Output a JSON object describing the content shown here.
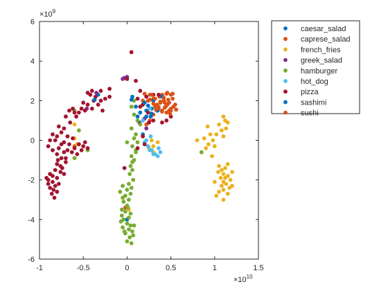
{
  "chart_data": {
    "type": "scatter",
    "title": "",
    "xlabel": "",
    "ylabel": "",
    "xlim": [
      -1,
      1.5
    ],
    "ylim": [
      -6,
      6
    ],
    "x_exponent": "×10",
    "x_exponent_power": "10",
    "y_exponent": "×10",
    "y_exponent_power": "9",
    "x_ticks": [
      -1,
      -0.5,
      0,
      0.5,
      1,
      1.5
    ],
    "x_tick_labels": [
      "-1",
      "-0.5",
      "0",
      "0.5",
      "1",
      "1.5"
    ],
    "y_ticks": [
      -6,
      -4,
      -2,
      0,
      2,
      4,
      6
    ],
    "y_tick_labels": [
      "-6",
      "-4",
      "-2",
      "0",
      "2",
      "4",
      "6"
    ],
    "grid": false,
    "legend_position": "outside-top-right",
    "series": [
      {
        "name": "caesar_salad",
        "color": "#0072BD",
        "points": [
          [
            0.06,
            2.2
          ],
          [
            0.12,
            1.2
          ],
          [
            0.22,
            1.5
          ],
          [
            0.28,
            1.6
          ],
          [
            0.35,
            1.5
          ],
          [
            -0.33,
            2.3
          ],
          [
            0.0,
            -4.0
          ],
          [
            0.18,
            0.3
          ]
        ]
      },
      {
        "name": "caprese_salad",
        "color": "#D95319",
        "points": [
          [
            0.2,
            2.35
          ],
          [
            0.26,
            2.3
          ],
          [
            0.3,
            2.1
          ],
          [
            0.34,
            1.8
          ],
          [
            0.36,
            1.6
          ],
          [
            0.4,
            1.5
          ],
          [
            0.42,
            2.0
          ],
          [
            0.44,
            1.7
          ],
          [
            0.46,
            2.4
          ],
          [
            0.48,
            1.9
          ],
          [
            0.5,
            1.6
          ],
          [
            0.52,
            2.1
          ],
          [
            0.38,
            1.9
          ],
          [
            0.4,
            2.3
          ],
          [
            0.45,
            1.4
          ],
          [
            0.3,
            1.3
          ],
          [
            0.22,
            0.8
          ],
          [
            0.24,
            2.0
          ],
          [
            0.32,
            1.7
          ],
          [
            0.48,
            1.5
          ],
          [
            0.55,
            1.8
          ],
          [
            0.43,
            1.9
          ],
          [
            0.37,
            2.2
          ],
          [
            0.5,
            2.3
          ],
          [
            0.26,
            1.0
          ],
          [
            -0.6,
            -0.3
          ],
          [
            -0.02,
            -3.4
          ],
          [
            0.18,
            2.0
          ]
        ]
      },
      {
        "name": "french_fries",
        "color": "#EDB120",
        "points": [
          [
            1.1,
            1.2
          ],
          [
            1.12,
            1.0
          ],
          [
            1.05,
            0.8
          ],
          [
            1.08,
            0.5
          ],
          [
            1.1,
            0.2
          ],
          [
            1.15,
            0.9
          ],
          [
            1.13,
            0.6
          ],
          [
            1.02,
            0.3
          ],
          [
            0.95,
            0.3
          ],
          [
            0.88,
            0.1
          ],
          [
            0.9,
            -0.4
          ],
          [
            0.93,
            -0.2
          ],
          [
            0.85,
            -0.6
          ],
          [
            0.98,
            0.0
          ],
          [
            1.0,
            -0.3
          ],
          [
            1.05,
            -1.3
          ],
          [
            1.08,
            -1.5
          ],
          [
            1.1,
            -1.7
          ],
          [
            1.12,
            -1.9
          ],
          [
            1.15,
            -1.8
          ],
          [
            1.18,
            -2.0
          ],
          [
            1.2,
            -1.6
          ],
          [
            1.1,
            -2.1
          ],
          [
            1.08,
            -2.3
          ],
          [
            1.13,
            -2.2
          ],
          [
            1.17,
            -2.4
          ],
          [
            1.05,
            -2.6
          ],
          [
            1.1,
            -2.5
          ],
          [
            1.15,
            -2.7
          ],
          [
            1.2,
            -2.3
          ],
          [
            1.02,
            -2.8
          ],
          [
            1.1,
            -3.0
          ],
          [
            1.0,
            -2.1
          ],
          [
            1.07,
            -1.9
          ],
          [
            1.04,
            -1.6
          ],
          [
            1.12,
            -1.4
          ],
          [
            1.15,
            -1.2
          ],
          [
            0.8,
            0.0
          ],
          [
            0.92,
            0.7
          ],
          [
            0.97,
            -0.8
          ],
          [
            0.3,
            -0.3
          ],
          [
            0.28,
            0.0
          ],
          [
            0.35,
            -0.1
          ],
          [
            0.3,
            -0.6
          ],
          [
            0.25,
            -0.4
          ],
          [
            -0.57,
            -0.2
          ],
          [
            -0.6,
            0.1
          ],
          [
            -0.6,
            0.8
          ],
          [
            0.02,
            -3.5
          ]
        ]
      },
      {
        "name": "greek_salad",
        "color": "#7E2F8E",
        "points": [
          [
            -0.05,
            3.1
          ],
          [
            -0.03,
            3.15
          ],
          [
            0.0,
            3.2
          ],
          [
            0.2,
            1.1
          ],
          [
            0.14,
            0.9
          ],
          [
            -0.35,
            2.4
          ],
          [
            -0.46,
            1.6
          ],
          [
            0.22,
            0.6
          ]
        ]
      },
      {
        "name": "hamburger",
        "color": "#77AC30",
        "points": [
          [
            0.05,
            1.7
          ],
          [
            0.08,
            1.3
          ],
          [
            0.12,
            1.0
          ],
          [
            0.05,
            0.6
          ],
          [
            0.1,
            0.3
          ],
          [
            0.08,
            0.1
          ],
          [
            0.12,
            -0.1
          ],
          [
            0.06,
            -0.3
          ],
          [
            0.1,
            -0.5
          ],
          [
            0.05,
            -0.8
          ],
          [
            0.08,
            -1.0
          ],
          [
            0.04,
            -1.3
          ],
          [
            0.06,
            -1.5
          ],
          [
            0.03,
            -1.7
          ],
          [
            0.07,
            -2.0
          ],
          [
            0.02,
            -2.2
          ],
          [
            0.05,
            -2.4
          ],
          [
            0.0,
            -2.5
          ],
          [
            0.04,
            -2.7
          ],
          [
            -0.02,
            -2.8
          ],
          [
            0.02,
            -3.0
          ],
          [
            -0.04,
            -3.1
          ],
          [
            0.0,
            -3.3
          ],
          [
            -0.06,
            -3.5
          ],
          [
            -0.02,
            -3.6
          ],
          [
            -0.06,
            -3.8
          ],
          [
            0.02,
            -3.9
          ],
          [
            -0.04,
            -4.0
          ],
          [
            0.0,
            -4.2
          ],
          [
            0.04,
            -4.3
          ],
          [
            -0.05,
            -4.4
          ],
          [
            0.02,
            -4.5
          ],
          [
            0.06,
            -4.6
          ],
          [
            -0.02,
            -4.7
          ],
          [
            0.03,
            -4.9
          ],
          [
            0.07,
            -4.8
          ],
          [
            0.0,
            -5.1
          ],
          [
            0.05,
            -5.2
          ],
          [
            -0.07,
            -4.1
          ],
          [
            -0.08,
            -2.6
          ],
          [
            -0.05,
            -2.9
          ],
          [
            0.01,
            -3.4
          ],
          [
            0.04,
            -3.7
          ],
          [
            -0.03,
            -4.6
          ],
          [
            0.08,
            -4.3
          ],
          [
            0.06,
            -1.1
          ],
          [
            0.1,
            -0.6
          ],
          [
            -0.6,
            -0.9
          ],
          [
            -0.6,
            1.5
          ],
          [
            -0.45,
            -0.5
          ],
          [
            -0.55,
            0.5
          ],
          [
            0.85,
            -0.6
          ],
          [
            0.15,
            0.8
          ],
          [
            0.08,
            2.0
          ],
          [
            0.0,
            -0.1
          ],
          [
            -0.05,
            -2.3
          ]
        ]
      },
      {
        "name": "hot_dog",
        "color": "#4DBEEE",
        "points": [
          [
            0.2,
            -0.1
          ],
          [
            0.24,
            -0.3
          ],
          [
            0.28,
            -0.5
          ],
          [
            0.32,
            -0.7
          ],
          [
            0.36,
            -0.4
          ],
          [
            0.38,
            -0.6
          ],
          [
            0.35,
            -0.8
          ],
          [
            0.3,
            -0.7
          ],
          [
            0.26,
            -0.5
          ],
          [
            0.22,
            0.0
          ],
          [
            0.27,
            0.2
          ],
          [
            0.18,
            1.0
          ],
          [
            0.26,
            1.6
          ]
        ]
      },
      {
        "name": "pizza",
        "color": "#A2142F",
        "points": [
          [
            -0.2,
            2.6
          ],
          [
            -0.25,
            2.1
          ],
          [
            -0.3,
            2.0
          ],
          [
            -0.3,
            2.5
          ],
          [
            -0.33,
            1.8
          ],
          [
            -0.36,
            2.2
          ],
          [
            -0.4,
            1.6
          ],
          [
            -0.42,
            2.3
          ],
          [
            -0.45,
            1.8
          ],
          [
            -0.48,
            1.5
          ],
          [
            -0.5,
            1.9
          ],
          [
            -0.52,
            1.6
          ],
          [
            -0.55,
            1.4
          ],
          [
            -0.58,
            1.2
          ],
          [
            -0.62,
            1.6
          ],
          [
            -0.66,
            1.5
          ],
          [
            -0.7,
            1.2
          ],
          [
            -0.72,
            0.6
          ],
          [
            -0.75,
            0.4
          ],
          [
            -0.78,
            0.7
          ],
          [
            -0.8,
            0.2
          ],
          [
            -0.82,
            0.0
          ],
          [
            -0.85,
            0.3
          ],
          [
            -0.88,
            0.0
          ],
          [
            -0.9,
            -0.3
          ],
          [
            -0.85,
            -0.5
          ],
          [
            -0.8,
            -0.7
          ],
          [
            -0.78,
            -0.4
          ],
          [
            -0.75,
            -0.2
          ],
          [
            -0.72,
            -0.6
          ],
          [
            -0.7,
            -0.9
          ],
          [
            -0.68,
            -0.5
          ],
          [
            -0.66,
            -0.2
          ],
          [
            -0.63,
            -0.6
          ],
          [
            -0.6,
            -0.4
          ],
          [
            -0.57,
            -0.7
          ],
          [
            -0.55,
            -0.2
          ],
          [
            -0.52,
            -0.5
          ],
          [
            -0.5,
            -0.3
          ],
          [
            -0.48,
            -0.1
          ],
          [
            -0.45,
            -0.4
          ],
          [
            -0.62,
            0.1
          ],
          [
            -0.68,
            0.2
          ],
          [
            -0.72,
            -0.1
          ],
          [
            -0.75,
            -0.9
          ],
          [
            -0.8,
            -1.2
          ],
          [
            -0.82,
            -1.5
          ],
          [
            -0.85,
            -1.8
          ],
          [
            -0.88,
            -1.7
          ],
          [
            -0.9,
            -2.0
          ],
          [
            -0.85,
            -2.1
          ],
          [
            -0.82,
            -2.3
          ],
          [
            -0.8,
            -1.9
          ],
          [
            -0.78,
            -2.2
          ],
          [
            -0.76,
            -1.6
          ],
          [
            -0.74,
            -1.4
          ],
          [
            -0.72,
            -1.7
          ],
          [
            -0.84,
            -2.5
          ],
          [
            -0.86,
            -2.7
          ],
          [
            -0.88,
            -2.4
          ],
          [
            -0.9,
            -2.2
          ],
          [
            -0.92,
            -1.9
          ],
          [
            -0.83,
            -2.9
          ],
          [
            -0.8,
            -2.6
          ],
          [
            -0.79,
            -1.0
          ],
          [
            -0.76,
            -1.3
          ],
          [
            0.05,
            4.45
          ],
          [
            0.1,
            3.0
          ],
          [
            0.15,
            2.5
          ],
          [
            0.22,
            2.2
          ],
          [
            0.18,
            0.2
          ],
          [
            0.2,
            -0.2
          ],
          [
            0.25,
            0.9
          ],
          [
            0.3,
            1.0
          ],
          [
            0.4,
            0.9
          ],
          [
            0.45,
            1.0
          ],
          [
            0.5,
            1.2
          ],
          [
            0.15,
            1.7
          ],
          [
            0.12,
            2.1
          ],
          [
            0.3,
            2.3
          ],
          [
            0.36,
            2.3
          ],
          [
            0.24,
            1.4
          ],
          [
            0.18,
            1.8
          ],
          [
            -0.38,
            2.0
          ],
          [
            -0.4,
            2.5
          ],
          [
            -0.2,
            2.2
          ],
          [
            -0.28,
            1.5
          ],
          [
            -0.45,
            2.4
          ],
          [
            -0.6,
            1.4
          ],
          [
            -0.65,
            0.9
          ],
          [
            -0.7,
            -1.1
          ],
          [
            0.0,
            3.1
          ],
          [
            -0.03,
            -1.4
          ],
          [
            0.12,
            -0.4
          ]
        ]
      },
      {
        "name": "sashimi",
        "color": "#0072BD",
        "points": [
          [
            0.05,
            2.05
          ],
          [
            0.1,
            1.7
          ],
          [
            0.15,
            1.4
          ],
          [
            0.2,
            1.9
          ],
          [
            0.24,
            1.75
          ],
          [
            0.3,
            2.0
          ],
          [
            0.28,
            1.35
          ],
          [
            0.34,
            1.5
          ],
          [
            0.4,
            2.2
          ],
          [
            0.22,
            1.2
          ],
          [
            -0.37,
            2.05
          ],
          [
            0.27,
            1.2
          ]
        ]
      },
      {
        "name": "sushi",
        "color": "#D95319",
        "points": [
          [
            0.28,
            2.3
          ],
          [
            0.32,
            2.1
          ],
          [
            0.36,
            1.7
          ],
          [
            0.42,
            2.15
          ],
          [
            0.46,
            1.8
          ],
          [
            0.5,
            1.5
          ],
          [
            0.53,
            1.7
          ],
          [
            0.4,
            1.45
          ],
          [
            0.47,
            2.05
          ],
          [
            0.38,
            1.95
          ],
          [
            0.56,
            1.55
          ],
          [
            0.33,
            1.55
          ],
          [
            0.43,
            1.65
          ],
          [
            0.49,
            1.35
          ],
          [
            0.3,
            1.85
          ],
          [
            0.52,
            2.35
          ],
          [
            0.26,
            2.05
          ],
          [
            0.45,
            2.35
          ]
        ]
      }
    ]
  }
}
